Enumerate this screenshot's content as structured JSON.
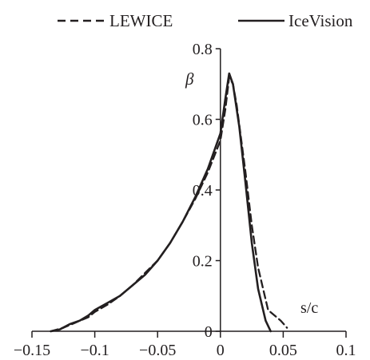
{
  "chart_data": {
    "type": "line",
    "xlabel": "s/c",
    "ylabel": "β",
    "xlim": [
      -0.15,
      0.1
    ],
    "ylim": [
      0,
      0.8
    ],
    "xticks": [
      -0.15,
      -0.1,
      -0.05,
      0,
      0.05,
      0.1
    ],
    "xtick_labels": [
      "−0.15",
      "−0.1",
      "−0.05",
      "0",
      "0.05",
      "0.1"
    ],
    "yticks": [
      0,
      0.2,
      0.4,
      0.6,
      0.8
    ],
    "ytick_labels": [
      "0",
      "0.2",
      "0.4",
      "0.6",
      "0.8"
    ],
    "grid": false,
    "legend_position": "top",
    "series": [
      {
        "name": "LEWICE",
        "style": "dashed",
        "color": "#231f20",
        "x": [
          -0.135,
          -0.125,
          -0.115,
          -0.105,
          -0.1,
          -0.09,
          -0.08,
          -0.07,
          -0.06,
          -0.05,
          -0.04,
          -0.03,
          -0.02,
          -0.01,
          0,
          0.004,
          0.007,
          0.01,
          0.013,
          0.02,
          0.025,
          0.03,
          0.038,
          0.048,
          0.053
        ],
        "y": [
          0,
          0.01,
          0.025,
          0.04,
          0.055,
          0.075,
          0.1,
          0.13,
          0.165,
          0.2,
          0.25,
          0.31,
          0.375,
          0.45,
          0.54,
          0.63,
          0.72,
          0.7,
          0.64,
          0.45,
          0.3,
          0.18,
          0.06,
          0.03,
          0.01
        ]
      },
      {
        "name": "IceVision",
        "style": "solid",
        "color": "#231f20",
        "x": [
          -0.135,
          -0.128,
          -0.12,
          -0.112,
          -0.105,
          -0.1,
          -0.09,
          -0.08,
          -0.07,
          -0.06,
          -0.05,
          -0.04,
          -0.03,
          -0.02,
          -0.01,
          0,
          0.004,
          0.007,
          0.01,
          0.015,
          0.02,
          0.025,
          0.03,
          0.036,
          0.04
        ],
        "y": [
          0,
          0.005,
          0.02,
          0.03,
          0.045,
          0.06,
          0.08,
          0.1,
          0.13,
          0.16,
          0.2,
          0.25,
          0.31,
          0.38,
          0.46,
          0.56,
          0.66,
          0.73,
          0.7,
          0.58,
          0.42,
          0.25,
          0.12,
          0.03,
          0
        ]
      }
    ]
  }
}
